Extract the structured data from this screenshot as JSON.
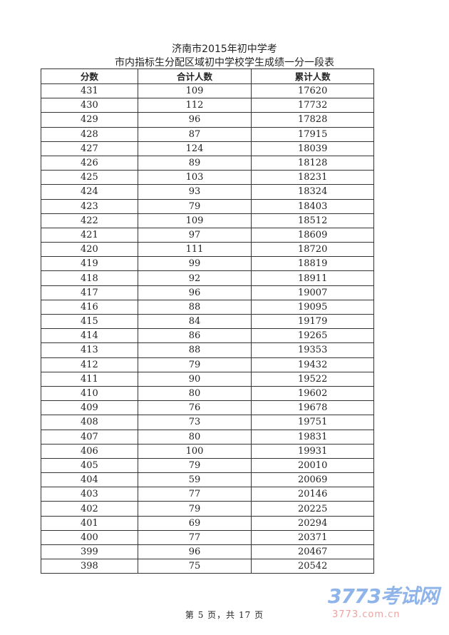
{
  "title_line1": "济南市2015年初中学考",
  "title_line2": "市内指标生分配区域初中学校学生成绩一分一段表",
  "columns": [
    "分数",
    "合计人数",
    "累计人数"
  ],
  "rows": [
    [
      "431",
      "109",
      "17620"
    ],
    [
      "430",
      "112",
      "17732"
    ],
    [
      "429",
      "96",
      "17828"
    ],
    [
      "428",
      "87",
      "17915"
    ],
    [
      "427",
      "124",
      "18039"
    ],
    [
      "426",
      "89",
      "18128"
    ],
    [
      "425",
      "103",
      "18231"
    ],
    [
      "424",
      "93",
      "18324"
    ],
    [
      "423",
      "79",
      "18403"
    ],
    [
      "422",
      "109",
      "18512"
    ],
    [
      "421",
      "97",
      "18609"
    ],
    [
      "420",
      "111",
      "18720"
    ],
    [
      "419",
      "99",
      "18819"
    ],
    [
      "418",
      "92",
      "18911"
    ],
    [
      "417",
      "96",
      "19007"
    ],
    [
      "416",
      "88",
      "19095"
    ],
    [
      "415",
      "84",
      "19179"
    ],
    [
      "414",
      "86",
      "19265"
    ],
    [
      "413",
      "88",
      "19353"
    ],
    [
      "412",
      "79",
      "19432"
    ],
    [
      "411",
      "90",
      "19522"
    ],
    [
      "410",
      "80",
      "19602"
    ],
    [
      "409",
      "76",
      "19678"
    ],
    [
      "408",
      "73",
      "19751"
    ],
    [
      "407",
      "80",
      "19831"
    ],
    [
      "406",
      "100",
      "19931"
    ],
    [
      "405",
      "79",
      "20010"
    ],
    [
      "404",
      "59",
      "20069"
    ],
    [
      "403",
      "77",
      "20146"
    ],
    [
      "402",
      "79",
      "20225"
    ],
    [
      "401",
      "69",
      "20294"
    ],
    [
      "400",
      "77",
      "20371"
    ],
    [
      "399",
      "96",
      "20467"
    ],
    [
      "398",
      "75",
      "20542"
    ]
  ],
  "footer": "第 5 页，共 17 页",
  "watermark": {
    "logo": "3773考试网",
    "url": "3773.com.cn"
  }
}
